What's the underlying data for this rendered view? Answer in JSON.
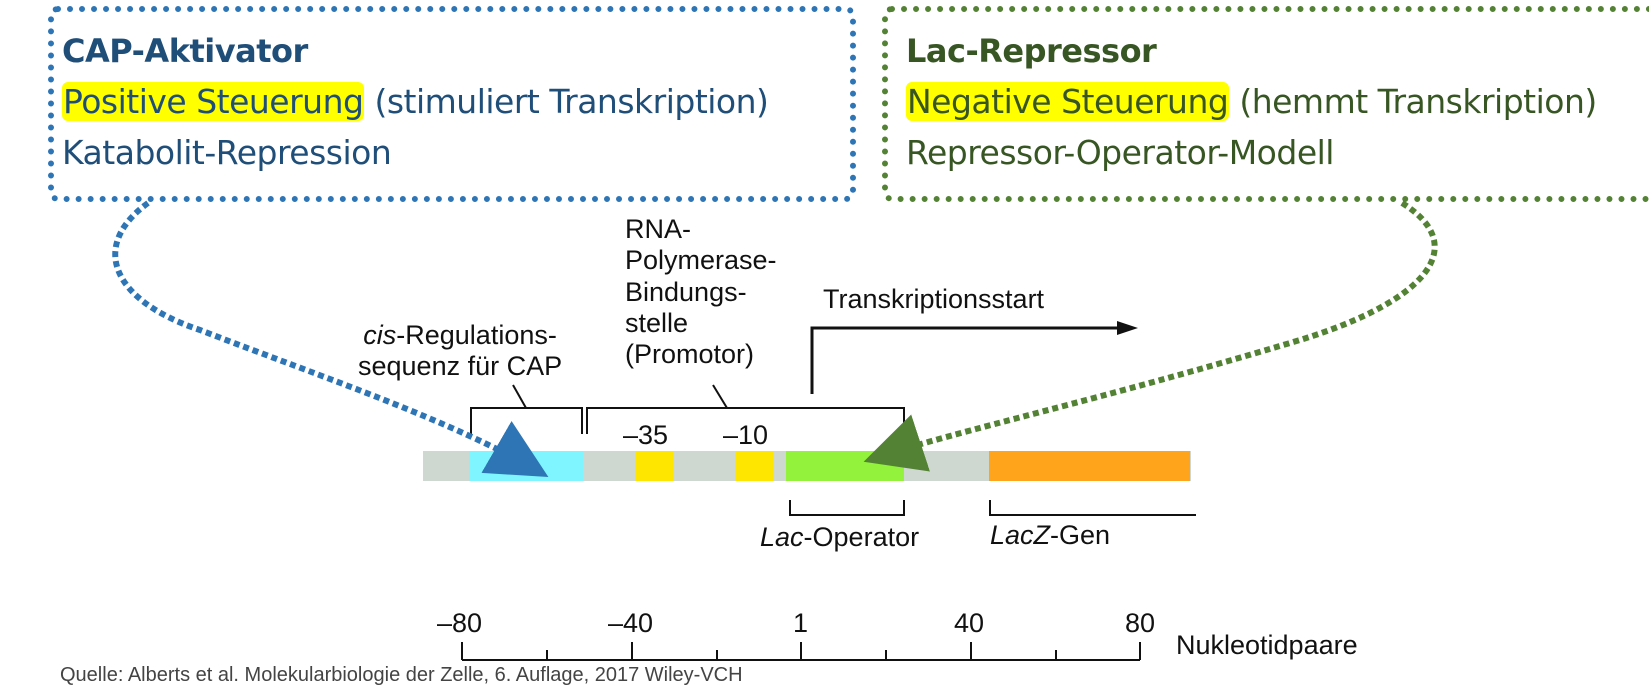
{
  "cap_box": {
    "title": "CAP-Aktivator",
    "highlight": "Positive Steuerung",
    "rest": " (stimuliert Transkription)",
    "line3": "Katabolit-Repression"
  },
  "lac_box": {
    "title": "Lac-Repressor",
    "highlight": "Negative Steuerung",
    "rest": " (hemmt Transkription)",
    "line3": "Repressor-Operator-Modell"
  },
  "labels": {
    "cis_italic": "cis",
    "cis_rest": "-Regulations-",
    "cis_line2": "sequenz für CAP",
    "rna_line1": "RNA-",
    "rna_line2": "Polymerase-",
    "rna_line3": "Bindungs-",
    "rna_line4": "stelle",
    "rna_line5": "(Promotor)",
    "transcription_start": "Transkriptionsstart",
    "minus35": "–35",
    "minus10": "–10",
    "lac_italic": "Lac",
    "lac_rest": "-Operator",
    "lacz_italic": "LacZ",
    "lacz_rest": "-Gen"
  },
  "scale": {
    "ticks": [
      "–80",
      "–40",
      "1",
      "40",
      "80"
    ],
    "unit": "Nukleotidpaare"
  },
  "source": "Quelle: Alberts et al. Molekularbiologie der Zelle, 6. Auflage, 2017 Wiley-VCH",
  "colors": {
    "cap_blue": "#2e75b6",
    "lac_green": "#548235",
    "cap_site": "#7ff5ff",
    "promoter_box": "#ffe600",
    "operator": "#92f23c",
    "gene": "#ffa41b",
    "dna_bg": "#cfd8d0",
    "highlight": "#ffff00"
  }
}
